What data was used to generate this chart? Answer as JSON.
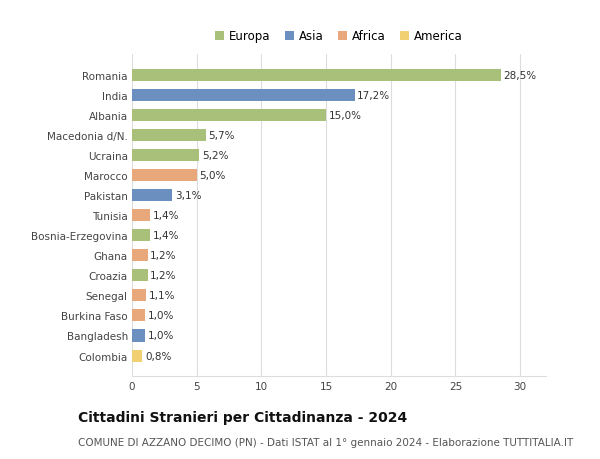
{
  "countries": [
    "Romania",
    "India",
    "Albania",
    "Macedonia d/N.",
    "Ucraina",
    "Marocco",
    "Pakistan",
    "Tunisia",
    "Bosnia-Erzegovina",
    "Ghana",
    "Croazia",
    "Senegal",
    "Burkina Faso",
    "Bangladesh",
    "Colombia"
  ],
  "values": [
    28.5,
    17.2,
    15.0,
    5.7,
    5.2,
    5.0,
    3.1,
    1.4,
    1.4,
    1.2,
    1.2,
    1.1,
    1.0,
    1.0,
    0.8
  ],
  "labels": [
    "28,5%",
    "17,2%",
    "15,0%",
    "5,7%",
    "5,2%",
    "5,0%",
    "3,1%",
    "1,4%",
    "1,4%",
    "1,2%",
    "1,2%",
    "1,1%",
    "1,0%",
    "1,0%",
    "0,8%"
  ],
  "continents": [
    "Europa",
    "Asia",
    "Europa",
    "Europa",
    "Europa",
    "Africa",
    "Asia",
    "Africa",
    "Europa",
    "Africa",
    "Europa",
    "Africa",
    "Africa",
    "Asia",
    "America"
  ],
  "continent_colors": {
    "Europa": "#a8c07a",
    "Asia": "#6b8fbf",
    "Africa": "#e8a87c",
    "America": "#f0d070"
  },
  "legend_order": [
    "Europa",
    "Asia",
    "Africa",
    "America"
  ],
  "title": "Cittadini Stranieri per Cittadinanza - 2024",
  "subtitle": "COMUNE DI AZZANO DECIMO (PN) - Dati ISTAT al 1° gennaio 2024 - Elaborazione TUTTITALIA.IT",
  "xlim": [
    0,
    32
  ],
  "xticks": [
    0,
    5,
    10,
    15,
    20,
    25,
    30
  ],
  "background_color": "#ffffff",
  "grid_color": "#dddddd",
  "bar_height": 0.6,
  "title_fontsize": 10,
  "subtitle_fontsize": 7.5,
  "label_fontsize": 7.5,
  "tick_fontsize": 7.5,
  "legend_fontsize": 8.5
}
